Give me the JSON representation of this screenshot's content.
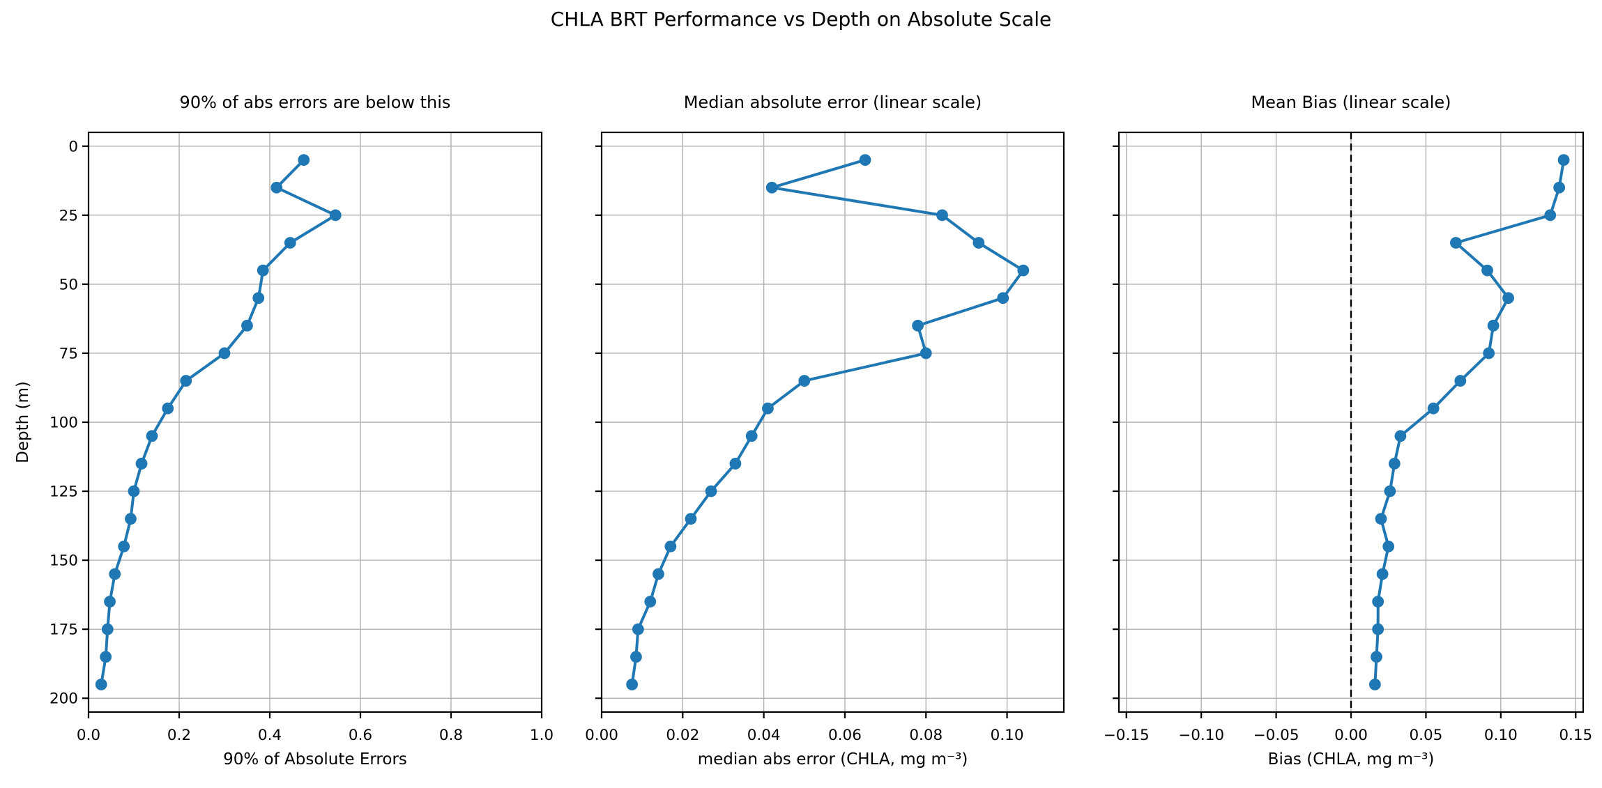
{
  "title": "CHLA BRT Performance vs Depth on Absolute Scale",
  "colors": {
    "series_line": "#1f77b4",
    "marker": "#1f77b4",
    "grid": "#b0b0b0",
    "spine": "#000000",
    "zero_line": "#000000",
    "background": "#ffffff",
    "text": "#000000"
  },
  "shared_y": {
    "label": "Depth (m)",
    "tick_values": [
      0,
      25,
      50,
      75,
      100,
      125,
      150,
      175,
      200
    ],
    "tick_labels": [
      "0",
      "25",
      "50",
      "75",
      "100",
      "125",
      "150",
      "175",
      "200"
    ],
    "ylim": [
      -5,
      205
    ],
    "inverted_depth_axis": true
  },
  "chart_data": [
    {
      "type": "line",
      "title": "90% of abs errors are below this",
      "xlabel": "90% of Absolute Errors",
      "ylabel": "Depth (m)",
      "xlim": [
        0,
        1.0
      ],
      "ylim": [
        -5,
        205
      ],
      "grid": true,
      "zero_line": false,
      "show_ytick_labels": true,
      "xtick_values": [
        0.0,
        0.2,
        0.4,
        0.6,
        0.8,
        1.0
      ],
      "xtick_labels": [
        "0.0",
        "0.2",
        "0.4",
        "0.6",
        "0.8",
        "1.0"
      ],
      "y_depths": [
        5,
        15,
        25,
        35,
        45,
        55,
        65,
        75,
        85,
        95,
        105,
        115,
        125,
        135,
        145,
        155,
        165,
        175,
        185,
        195
      ],
      "x_values": [
        0.475,
        0.415,
        0.545,
        0.445,
        0.385,
        0.375,
        0.35,
        0.3,
        0.215,
        0.175,
        0.14,
        0.117,
        0.1,
        0.093,
        0.078,
        0.058,
        0.047,
        0.042,
        0.038,
        0.028
      ]
    },
    {
      "type": "line",
      "title": "Median absolute error (linear scale)",
      "xlabel": "median abs error (CHLA, mg m⁻³)",
      "ylabel": "Depth (m)",
      "xlim": [
        0,
        0.114
      ],
      "ylim": [
        -5,
        205
      ],
      "grid": true,
      "zero_line": false,
      "show_ytick_labels": false,
      "xtick_values": [
        0.0,
        0.02,
        0.04,
        0.06,
        0.08,
        0.1
      ],
      "xtick_labels": [
        "0.00",
        "0.02",
        "0.04",
        "0.06",
        "0.08",
        "0.10"
      ],
      "y_depths": [
        5,
        15,
        25,
        35,
        45,
        55,
        65,
        75,
        85,
        95,
        105,
        115,
        125,
        135,
        145,
        155,
        165,
        175,
        185,
        195
      ],
      "x_values": [
        0.065,
        0.042,
        0.084,
        0.093,
        0.104,
        0.099,
        0.078,
        0.08,
        0.05,
        0.041,
        0.037,
        0.033,
        0.027,
        0.022,
        0.017,
        0.014,
        0.012,
        0.009,
        0.0085,
        0.0075
      ]
    },
    {
      "type": "line",
      "title": "Mean Bias (linear scale)",
      "xlabel": "Bias (CHLA, mg m⁻³)",
      "ylabel": "Depth (m)",
      "xlim": [
        -0.155,
        0.155
      ],
      "ylim": [
        -5,
        205
      ],
      "grid": true,
      "zero_line": true,
      "zero_line_x": 0.0,
      "show_ytick_labels": false,
      "xtick_values": [
        -0.15,
        -0.1,
        -0.05,
        0.0,
        0.05,
        0.1,
        0.15
      ],
      "xtick_labels": [
        "−0.15",
        "−0.10",
        "−0.05",
        "0.00",
        "0.05",
        "0.10",
        "0.15"
      ],
      "y_depths": [
        5,
        15,
        25,
        35,
        45,
        55,
        65,
        75,
        85,
        95,
        105,
        115,
        125,
        135,
        145,
        155,
        165,
        175,
        185,
        195
      ],
      "x_values": [
        0.142,
        0.139,
        0.133,
        0.07,
        0.091,
        0.105,
        0.095,
        0.092,
        0.073,
        0.055,
        0.033,
        0.029,
        0.026,
        0.02,
        0.025,
        0.021,
        0.018,
        0.018,
        0.017,
        0.016
      ]
    }
  ]
}
